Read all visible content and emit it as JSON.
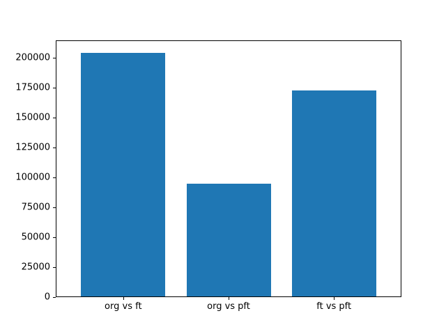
{
  "chart_data": {
    "type": "bar",
    "categories": [
      "org vs ft",
      "org vs pft",
      "ft vs pft"
    ],
    "values": [
      204000,
      94400,
      172500
    ],
    "title": "",
    "xlabel": "",
    "ylabel": "",
    "ylim": [
      0,
      214200
    ],
    "yticks": [
      0,
      25000,
      50000,
      75000,
      100000,
      125000,
      150000,
      175000,
      200000
    ],
    "ytick_labels": [
      "0",
      "25000",
      "50000",
      "75000",
      "100000",
      "125000",
      "150000",
      "175000",
      "200000"
    ],
    "bar_color": "#1f77b4",
    "bar_width_fraction": 0.8,
    "grid": false,
    "legend": null,
    "frame_color": "#000000",
    "text_color": "#000000"
  }
}
